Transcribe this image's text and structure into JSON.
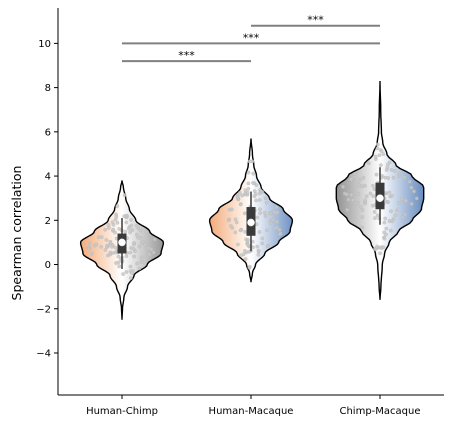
{
  "chart_data": {
    "type": "violin",
    "title": "",
    "xlabel": "",
    "ylabel": "Spearman correlation",
    "ylim": [
      -5.9,
      11.6
    ],
    "yticks": [
      -4,
      -2,
      0,
      2,
      4,
      6,
      8,
      10
    ],
    "ytick_labels": [
      "−4",
      "−2",
      "0",
      "2",
      "4",
      "6",
      "8",
      "10"
    ],
    "categories": [
      "Human-Chimp",
      "Human-Macaque",
      "Chimp-Macaque"
    ],
    "colors": {
      "human": "#f2a26b",
      "chimp": "#8c8c8c",
      "macaque": "#5f86bd",
      "outline": "#000000",
      "points": "#c8c8c8",
      "sig_line": "#808080"
    },
    "violins": [
      {
        "category": "Human-Chimp",
        "min": -2.5,
        "max": 3.8,
        "median": 1.0,
        "q1": 0.5,
        "q3": 1.4,
        "profile": [
          [
            -2.5,
            0.0
          ],
          [
            -2.0,
            0.01
          ],
          [
            -1.5,
            0.04
          ],
          [
            -1.0,
            0.12
          ],
          [
            -0.5,
            0.26
          ],
          [
            0.0,
            0.55
          ],
          [
            0.5,
            0.85
          ],
          [
            1.0,
            0.9
          ],
          [
            1.5,
            0.6
          ],
          [
            2.0,
            0.3
          ],
          [
            2.5,
            0.16
          ],
          [
            3.0,
            0.08
          ],
          [
            3.5,
            0.03
          ],
          [
            3.8,
            0.0
          ]
        ],
        "left_color": "#f2a26b",
        "right_color": "#8c8c8c"
      },
      {
        "category": "Human-Macaque",
        "min": -0.8,
        "max": 5.7,
        "median": 1.9,
        "q1": 1.3,
        "q3": 2.6,
        "profile": [
          [
            -0.8,
            0.0
          ],
          [
            -0.4,
            0.03
          ],
          [
            0.0,
            0.1
          ],
          [
            0.5,
            0.3
          ],
          [
            1.0,
            0.6
          ],
          [
            1.5,
            0.85
          ],
          [
            2.0,
            0.9
          ],
          [
            2.5,
            0.7
          ],
          [
            3.0,
            0.4
          ],
          [
            3.5,
            0.22
          ],
          [
            4.0,
            0.12
          ],
          [
            4.5,
            0.06
          ],
          [
            5.0,
            0.03
          ],
          [
            5.7,
            0.0
          ]
        ],
        "left_color": "#f2a26b",
        "right_color": "#5f86bd"
      },
      {
        "category": "Chimp-Macaque",
        "min": -1.6,
        "max": 8.3,
        "median": 3.0,
        "q1": 2.5,
        "q3": 3.7,
        "profile": [
          [
            -1.6,
            0.0
          ],
          [
            -1.0,
            0.02
          ],
          [
            0.0,
            0.05
          ],
          [
            0.5,
            0.1
          ],
          [
            1.0,
            0.2
          ],
          [
            1.5,
            0.4
          ],
          [
            2.0,
            0.7
          ],
          [
            2.5,
            0.9
          ],
          [
            3.0,
            0.95
          ],
          [
            3.5,
            0.95
          ],
          [
            4.0,
            0.7
          ],
          [
            4.5,
            0.35
          ],
          [
            5.0,
            0.15
          ],
          [
            5.5,
            0.06
          ],
          [
            6.0,
            0.03
          ],
          [
            7.0,
            0.015
          ],
          [
            8.3,
            0.0
          ]
        ],
        "left_color": "#8c8c8c",
        "right_color": "#5f86bd"
      }
    ],
    "significance": [
      {
        "from": "Human-Chimp",
        "to": "Human-Macaque",
        "y": 9.2,
        "label": "***"
      },
      {
        "from": "Human-Chimp",
        "to": "Chimp-Macaque",
        "y": 10.0,
        "label": "***"
      },
      {
        "from": "Human-Macaque",
        "to": "Chimp-Macaque",
        "y": 10.8,
        "label": "***"
      }
    ]
  }
}
